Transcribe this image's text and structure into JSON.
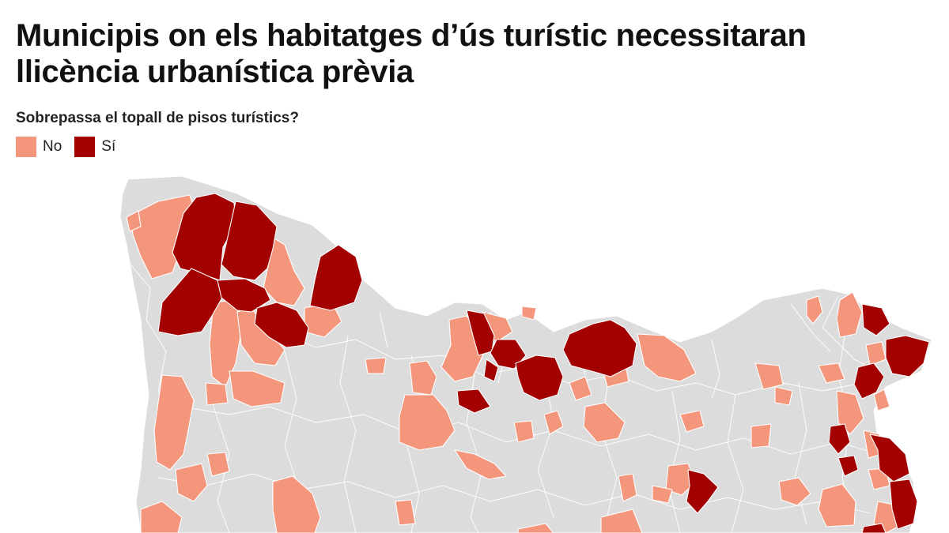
{
  "title": "Municipis on els habitatges d’ús turístic necessitaran llicència urbanística prèvia",
  "legend": {
    "title": "Sobrepassa el topall de pisos turístics?",
    "items": [
      {
        "label": "No",
        "color": "#f4967c"
      },
      {
        "label": "Sí",
        "color": "#a30000"
      }
    ]
  },
  "map": {
    "base_color": "#dcdcdc",
    "border_color": "#ffffff"
  }
}
